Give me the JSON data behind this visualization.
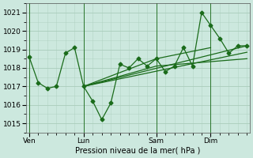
{
  "background_color": "#cce8de",
  "grid_color": "#aaccbb",
  "line_color": "#1a6b1a",
  "marker_color": "#1a6b1a",
  "title": "Pression niveau de la mer( hPa )",
  "ylim": [
    1014.5,
    1021.5
  ],
  "yticks": [
    1015,
    1016,
    1017,
    1018,
    1019,
    1020,
    1021
  ],
  "xtick_labels": [
    "Ven",
    "Lun",
    "Sam",
    "Dim"
  ],
  "xtick_positions": [
    0,
    6,
    14,
    20
  ],
  "vline_positions": [
    0,
    6,
    14,
    20
  ],
  "xlim": [
    -0.3,
    24.3
  ],
  "series1_x": [
    0,
    1,
    2,
    3,
    4,
    5,
    6,
    7,
    8,
    9,
    10,
    11,
    12,
    13,
    14,
    15,
    16,
    17,
    18,
    19,
    20,
    21,
    22,
    23,
    24
  ],
  "series1_y": [
    1018.6,
    1017.2,
    1016.9,
    1017.0,
    1018.8,
    1019.1,
    1017.0,
    1016.2,
    1015.2,
    1016.1,
    1018.2,
    1018.0,
    1018.5,
    1018.1,
    1018.5,
    1017.8,
    1018.1,
    1019.1,
    1018.1,
    1021.0,
    1020.3,
    1019.6,
    1018.8,
    1019.2,
    1019.2
  ],
  "trend1_x": [
    6,
    14,
    20
  ],
  "trend1_y": [
    1017.0,
    1018.5,
    1019.1
  ],
  "trend2_x": [
    6,
    24
  ],
  "trend2_y": [
    1017.0,
    1019.2
  ],
  "trend3_x": [
    6,
    24
  ],
  "trend3_y": [
    1017.0,
    1018.85
  ],
  "trend4_x": [
    6,
    14,
    24
  ],
  "trend4_y": [
    1017.0,
    1018.1,
    1018.5
  ]
}
